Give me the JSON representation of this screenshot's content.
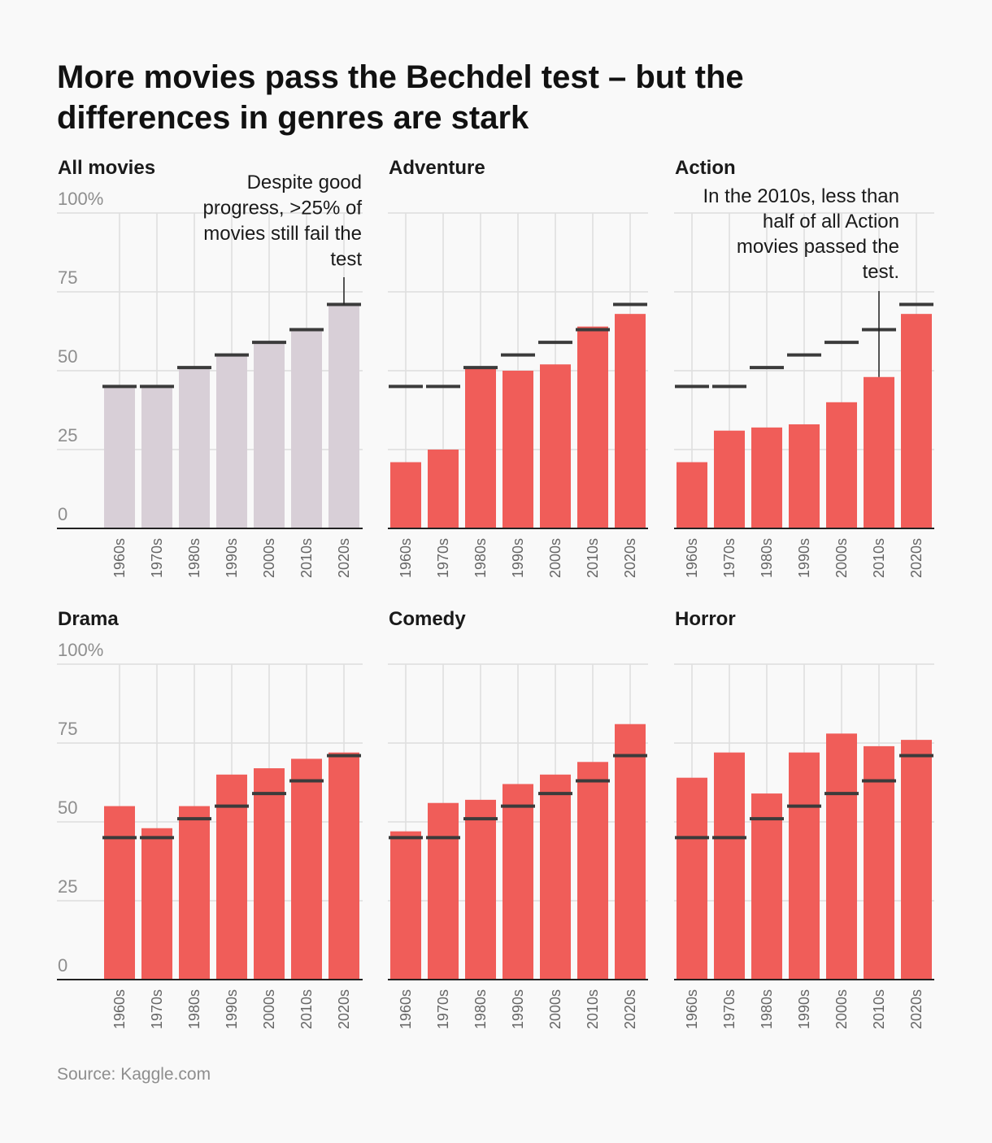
{
  "title": "More movies pass the Bechdel test – but the differences in genres are stark",
  "source": "Source: Kaggle.com",
  "colors": {
    "all_bar": "#d8cfd7",
    "genre_bar": "#f05d59",
    "marker": "#3b3b3b",
    "grid": "#dedede",
    "axis": "#222222"
  },
  "chart_data": {
    "type": "bar",
    "categories": [
      "1960s",
      "1970s",
      "1980s",
      "1990s",
      "2000s",
      "2010s",
      "2020s"
    ],
    "ylim": [
      0,
      100
    ],
    "yticks": [
      0,
      25,
      50,
      75,
      100
    ],
    "ytick_labels": [
      "0",
      "25",
      "50",
      "75",
      "100%"
    ],
    "reference_series": {
      "name": "All movies",
      "values": [
        45,
        45,
        51,
        55,
        59,
        63,
        71
      ]
    },
    "series": [
      {
        "name": "All movies",
        "values": [
          45,
          45,
          51,
          55,
          59,
          63,
          71
        ]
      },
      {
        "name": "Adventure",
        "values": [
          21,
          25,
          51,
          50,
          52,
          64,
          68
        ]
      },
      {
        "name": "Action",
        "values": [
          21,
          31,
          32,
          33,
          40,
          48,
          68
        ]
      },
      {
        "name": "Drama",
        "values": [
          55,
          48,
          55,
          65,
          67,
          70,
          72
        ]
      },
      {
        "name": "Comedy",
        "values": [
          47,
          56,
          57,
          62,
          65,
          69,
          81
        ]
      },
      {
        "name": "Horror",
        "values": [
          64,
          72,
          59,
          72,
          78,
          74,
          76
        ]
      }
    ],
    "annotations": [
      {
        "panel": "All movies",
        "category": "2020s",
        "lines": [
          "Despite good",
          "progress, >25% of",
          "movies still fail the",
          "test"
        ]
      },
      {
        "panel": "Action",
        "category": "2010s",
        "lines": [
          "In the 2010s, less than",
          "half of all Action",
          "movies passed the",
          "test."
        ]
      }
    ]
  }
}
